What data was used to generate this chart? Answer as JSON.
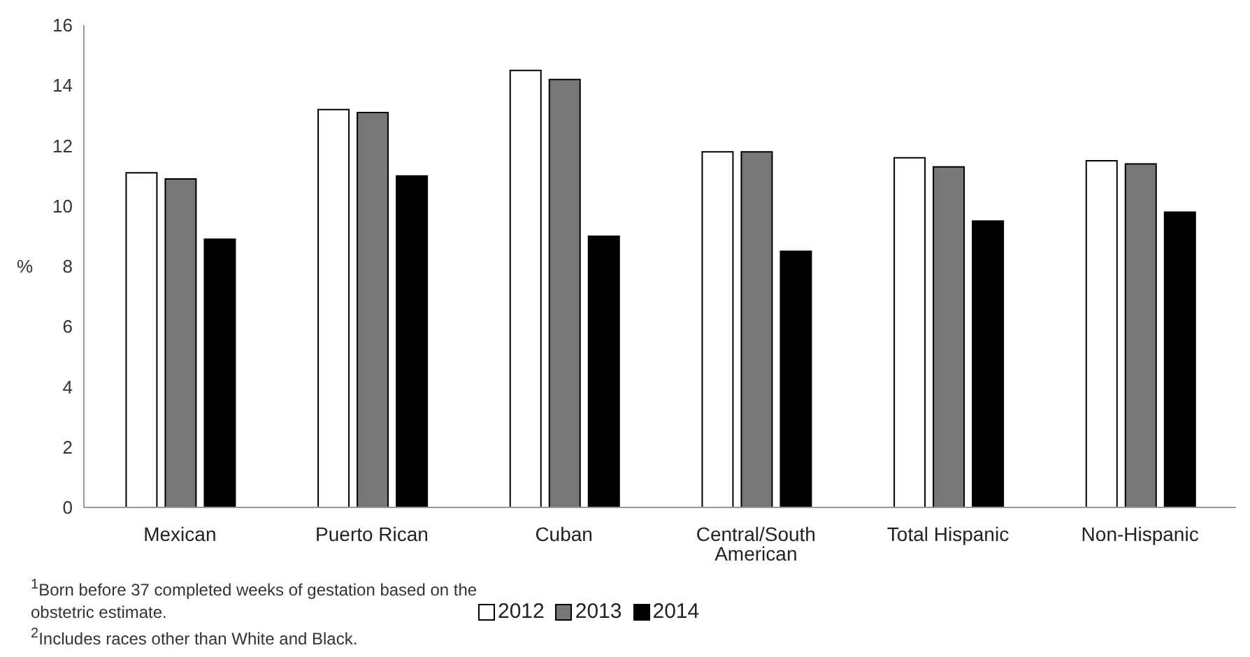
{
  "chart_data": {
    "type": "bar",
    "ylabel": "%",
    "categories": [
      "Mexican",
      "Puerto Rican",
      "Cuban",
      "Central/South American",
      "Total Hispanic",
      "Non-Hispanic"
    ],
    "series": [
      {
        "name": "2012",
        "color": "#ffffff",
        "values": [
          11.1,
          13.2,
          14.5,
          11.8,
          11.6,
          11.5
        ]
      },
      {
        "name": "2013",
        "color": "#777777",
        "values": [
          10.9,
          13.1,
          14.2,
          11.8,
          11.3,
          11.4
        ]
      },
      {
        "name": "2014",
        "color": "#000000",
        "values": [
          8.9,
          11.0,
          9.0,
          8.5,
          9.5,
          9.8
        ]
      }
    ],
    "ylim": [
      0,
      16
    ],
    "yticks": [
      0,
      2,
      4,
      6,
      8,
      10,
      12,
      14,
      16
    ],
    "grid": false,
    "legend": "bottom",
    "annotations": [
      "$^{1}$Born before 37 completed weeks of gestation based on the obstetric estimate.",
      "$^{2}$Includes races other than White and Black."
    ]
  }
}
